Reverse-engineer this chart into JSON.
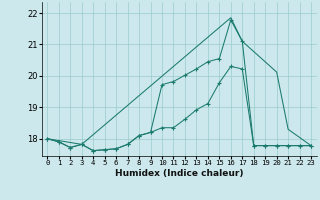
{
  "xlabel": "Humidex (Indice chaleur)",
  "bg_color": "#cce8ec",
  "grid_color": "#99cccc",
  "line_color": "#1a7a6e",
  "xlim": [
    -0.5,
    23.5
  ],
  "ylim": [
    17.45,
    22.35
  ],
  "yticks": [
    18,
    19,
    20,
    21,
    22
  ],
  "xticks": [
    0,
    1,
    2,
    3,
    4,
    5,
    6,
    7,
    8,
    9,
    10,
    11,
    12,
    13,
    14,
    15,
    16,
    17,
    18,
    19,
    20,
    21,
    22,
    23
  ],
  "curve1_x": [
    0,
    1,
    2,
    3,
    4,
    5,
    6,
    7,
    8,
    9,
    10,
    11,
    12,
    13,
    14,
    15,
    16,
    17,
    18,
    19,
    20,
    21,
    22,
    23
  ],
  "curve1_y": [
    18.0,
    17.9,
    17.72,
    17.82,
    17.62,
    17.65,
    17.68,
    17.82,
    18.1,
    18.2,
    18.35,
    18.35,
    18.62,
    18.92,
    19.12,
    19.78,
    20.3,
    20.22,
    17.78,
    17.78,
    17.78,
    17.78,
    17.78,
    17.78
  ],
  "curve2_x": [
    0,
    1,
    2,
    3,
    4,
    5,
    6,
    7,
    8,
    9,
    10,
    11,
    12,
    13,
    14,
    15,
    16,
    17,
    18,
    19,
    20,
    21,
    22,
    23
  ],
  "curve2_y": [
    18.0,
    17.9,
    17.72,
    17.82,
    17.62,
    17.65,
    17.68,
    17.82,
    18.1,
    18.2,
    19.72,
    19.82,
    20.02,
    20.22,
    20.45,
    20.55,
    21.78,
    21.1,
    17.78,
    17.78,
    17.78,
    17.78,
    17.78,
    17.78
  ],
  "curve3_x": [
    0,
    3,
    16,
    17,
    20,
    21,
    23
  ],
  "curve3_y": [
    18.0,
    17.82,
    21.85,
    21.1,
    20.12,
    18.3,
    17.78
  ],
  "marker": "+",
  "marker_size": 3.5,
  "linewidth": 0.75
}
